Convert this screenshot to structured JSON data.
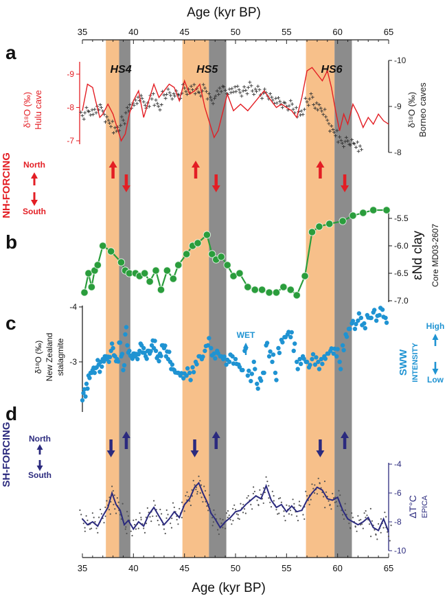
{
  "figure": {
    "x_axis_label_top": "Age (kyr BP)",
    "x_axis_label_bottom": "Age (kyr BP)",
    "x_ticks": [
      35,
      40,
      45,
      50,
      55,
      60,
      65
    ],
    "x_range": [
      35,
      65
    ]
  },
  "events": [
    {
      "label": "HS4",
      "orange": [
        37.3,
        38.6
      ],
      "gray": [
        38.6,
        39.7
      ]
    },
    {
      "label": "HS5",
      "orange": [
        44.8,
        47.4
      ],
      "gray": [
        47.4,
        49.1
      ]
    },
    {
      "label": "HS6",
      "orange": [
        56.9,
        59.7
      ],
      "gray": [
        59.7,
        61.4
      ]
    }
  ],
  "panels": {
    "a": {
      "letter": "a",
      "left_label_1": "δ¹⁸O (‰)",
      "left_label_2": "Hulu cave",
      "right_label_1": "δ¹⁸O (‰)",
      "right_label_2": "Borneo caves",
      "left_ticks": [
        "-9",
        "-8",
        "-7"
      ],
      "right_ticks": [
        "-10",
        "-9",
        "-8"
      ],
      "forcing_title": "NH-FORCING",
      "north": "North",
      "south": "South",
      "arrows": [
        {
          "age": 38.0,
          "dir": "up"
        },
        {
          "age": 39.3,
          "dir": "down"
        },
        {
          "age": 46.1,
          "dir": "up"
        },
        {
          "age": 48.1,
          "dir": "down"
        },
        {
          "age": 58.3,
          "dir": "up"
        },
        {
          "age": 60.7,
          "dir": "down"
        }
      ]
    },
    "b": {
      "letter": "b",
      "right_label_1": "εNd clay",
      "right_label_2": "Core MD03-2607",
      "right_ticks": [
        "-5.5",
        "-6.0",
        "-6.5",
        "-7.0"
      ]
    },
    "c": {
      "letter": "c",
      "left_label_1": "δ¹⁸O (‰)",
      "left_label_2": "New Zealand",
      "left_label_3": "stalagmite",
      "left_ticks": [
        "-4",
        "-3"
      ],
      "wet": "WET",
      "sww": "SWW",
      "intensity": "INTENSITY",
      "high": "High",
      "low": "Low"
    },
    "d": {
      "letter": "d",
      "forcing_title": "SH-FORCING",
      "north": "North",
      "south": "South",
      "right_label_1": "ΔT°C",
      "right_label_2": "EPICA",
      "right_ticks": [
        "-4",
        "-6",
        "-8",
        "-10"
      ],
      "arrows": [
        {
          "age": 37.8,
          "dir": "down"
        },
        {
          "age": 39.3,
          "dir": "up"
        },
        {
          "age": 46.0,
          "dir": "down"
        },
        {
          "age": 48.1,
          "dir": "up"
        },
        {
          "age": 58.3,
          "dir": "down"
        },
        {
          "age": 60.7,
          "dir": "up"
        }
      ]
    }
  },
  "chart_data": [
    {
      "type": "line",
      "name": "Hulu cave δ18O",
      "axis": "left",
      "ylim": [
        -6.5,
        -9.6
      ],
      "x": [
        35,
        35.5,
        36,
        36.3,
        36.7,
        37,
        37.5,
        38,
        38.4,
        38.8,
        39.2,
        39.6,
        40,
        40.5,
        41,
        41.5,
        42,
        42.5,
        43,
        43.5,
        44,
        44.5,
        45,
        45.5,
        46,
        46.5,
        47,
        47.5,
        47.9,
        48.3,
        48.7,
        49.2,
        49.8,
        50.5,
        51.2,
        52,
        52.8,
        53.5,
        54,
        54.5,
        55,
        55.5,
        56,
        56.5,
        57,
        57.5,
        58,
        58.5,
        59,
        59.4,
        59.8,
        60.2,
        60.6,
        61,
        61.5,
        62,
        62.5,
        63,
        63.5,
        64,
        64.5,
        65
      ],
      "y": [
        -7.9,
        -8.7,
        -8.6,
        -8.2,
        -7.7,
        -7.8,
        -8.1,
        -7.8,
        -7.4,
        -7.0,
        -7.2,
        -7.8,
        -8.2,
        -8.5,
        -7.7,
        -8.2,
        -8.7,
        -8.3,
        -8.5,
        -8.7,
        -8.6,
        -8.2,
        -8.8,
        -8.4,
        -8.5,
        -8.7,
        -8.0,
        -7.5,
        -7.1,
        -7.3,
        -7.8,
        -8.4,
        -7.9,
        -8.1,
        -7.9,
        -8.2,
        -8.5,
        -8.2,
        -8.0,
        -8.1,
        -8.0,
        -7.9,
        -7.7,
        -8.3,
        -9.1,
        -9.2,
        -9.0,
        -8.8,
        -9.1,
        -8.6,
        -7.9,
        -7.3,
        -7.8,
        -7.5,
        -8.1,
        -7.8,
        -7.4,
        -7.7,
        -7.5,
        -7.8,
        -7.6,
        -7.5
      ]
    },
    {
      "type": "scatter",
      "name": "Borneo caves δ18O",
      "axis": "right",
      "ylim": [
        -7.95,
        -10.1
      ],
      "x": [
        35,
        35.4,
        35.8,
        36.2,
        36.6,
        37,
        37.4,
        37.8,
        38.2,
        38.6,
        39,
        39.4,
        39.8,
        40.2,
        40.6,
        41,
        41.4,
        41.8,
        42.2,
        42.6,
        43,
        43.4,
        43.8,
        44.2,
        44.6,
        45,
        45.4,
        45.8,
        46.2,
        46.6,
        47,
        47.4,
        47.8,
        48.2,
        48.6,
        49,
        49.4,
        49.8,
        50.2,
        50.6,
        51,
        51.4,
        51.8,
        52.2,
        52.6,
        53,
        53.4,
        53.8,
        54.2,
        54.6,
        55,
        55.4,
        55.8,
        56.2,
        56.6,
        57,
        57.4,
        57.8,
        58.2,
        58.6,
        59,
        59.4,
        59.8,
        60.2,
        60.6,
        61,
        61.4,
        61.8,
        62.2
      ],
      "y": [
        -8.8,
        -8.9,
        -8.85,
        -8.9,
        -9.0,
        -8.9,
        -8.7,
        -8.6,
        -8.5,
        -8.55,
        -8.7,
        -8.9,
        -9.0,
        -9.1,
        -9.2,
        -9.1,
        -9.0,
        -9.2,
        -9.1,
        -9.0,
        -9.25,
        -9.3,
        -9.2,
        -9.3,
        -9.25,
        -9.4,
        -9.3,
        -9.4,
        -9.35,
        -9.3,
        -9.4,
        -9.2,
        -9.1,
        -9.3,
        -9.4,
        -9.35,
        -9.3,
        -9.35,
        -9.4,
        -9.3,
        -9.35,
        -9.45,
        -9.3,
        -9.4,
        -9.25,
        -9.3,
        -9.2,
        -9.1,
        -9.15,
        -9.05,
        -9.0,
        -9.05,
        -8.9,
        -8.85,
        -8.9,
        -9.1,
        -9.2,
        -9.0,
        -9.0,
        -8.9,
        -8.7,
        -8.5,
        -8.4,
        -8.3,
        -8.2,
        -8.25,
        -8.2,
        -8.15,
        -8.1
      ]
    },
    {
      "type": "line",
      "name": "εNd clay MD03-2607",
      "axis": "right",
      "ylim": [
        -7.0,
        -5.3
      ],
      "x": [
        35.2,
        35.6,
        35.9,
        36.2,
        36.5,
        37.0,
        37.8,
        38.8,
        39.2,
        39.6,
        40.2,
        40.6,
        41.1,
        41.6,
        42.2,
        42.7,
        43.3,
        43.9,
        44.4,
        45.2,
        45.8,
        46.3,
        47.2,
        47.7,
        48.1,
        48.6,
        49.2,
        49.8,
        50.4,
        51.2,
        51.9,
        52.6,
        53.3,
        54.0,
        54.7,
        55.4,
        56.0,
        56.8,
        57.5,
        58.2,
        59.2,
        60.5,
        61.5,
        62.5,
        63.5,
        64.8
      ],
      "y": [
        -6.85,
        -6.5,
        -6.75,
        -6.45,
        -6.35,
        -6.0,
        -6.1,
        -6.3,
        -6.45,
        -6.5,
        -6.5,
        -6.55,
        -6.5,
        -6.65,
        -6.45,
        -6.8,
        -6.45,
        -6.6,
        -6.35,
        -6.15,
        -6.0,
        -5.95,
        -5.8,
        -6.15,
        -6.25,
        -6.2,
        -6.35,
        -6.55,
        -6.5,
        -6.75,
        -6.8,
        -6.8,
        -6.85,
        -6.85,
        -6.75,
        -6.8,
        -6.9,
        -6.55,
        -5.75,
        -5.65,
        -5.6,
        -5.55,
        -5.45,
        -5.4,
        -5.35,
        -5.35
      ]
    },
    {
      "type": "scatter",
      "name": "New Zealand stalagmite δ18O",
      "axis": "left",
      "ylim": [
        -2.2,
        -4.0
      ],
      "x": [
        35.0,
        35.2,
        35.4,
        35.6,
        35.8,
        36.0,
        36.2,
        36.4,
        36.6,
        36.8,
        37.0,
        37.2,
        37.4,
        37.6,
        37.8,
        38.0,
        38.2,
        38.4,
        38.6,
        38.8,
        39.0,
        39.2,
        39.4,
        39.6,
        39.8,
        40.0,
        40.2,
        40.4,
        40.6,
        40.8,
        41.0,
        41.2,
        41.4,
        41.6,
        41.8,
        42.0,
        42.2,
        42.4,
        42.6,
        42.8,
        43.0,
        43.2,
        43.4,
        43.6,
        43.8,
        44.0,
        44.3,
        44.6,
        44.9,
        45.2,
        45.5,
        45.8,
        46.1,
        46.4,
        46.7,
        47.0,
        47.3,
        47.6,
        47.9,
        48.2,
        48.5,
        48.8,
        49.1,
        49.4,
        49.7,
        50.0,
        50.3,
        50.6,
        50.9,
        51.2,
        51.5,
        51.8,
        52.1,
        52.4,
        52.7,
        53.0,
        53.3,
        53.6,
        53.9,
        54.2,
        54.5,
        54.8,
        55.1,
        55.4,
        55.7,
        56.0,
        56.3,
        56.6,
        56.9,
        57.2,
        57.5,
        57.8,
        58.1,
        58.4,
        58.7,
        59.0,
        59.3,
        59.6,
        59.9,
        60.2,
        60.5,
        60.8,
        61.1,
        61.4,
        61.7,
        62.0,
        62.3,
        62.6,
        62.9,
        63.2,
        63.5,
        63.8,
        64.1,
        64.4,
        64.7
      ],
      "y": [
        -2.3,
        -2.5,
        -2.6,
        -2.75,
        -2.8,
        -2.85,
        -2.8,
        -2.9,
        -2.95,
        -3.0,
        -3.05,
        -3.1,
        -3.05,
        -3.0,
        -3.2,
        -3.25,
        -3.1,
        -3.05,
        -3.35,
        -3.1,
        -2.85,
        -3.5,
        -3.3,
        -3.2,
        -3.1,
        -3.15,
        -3.1,
        -3.05,
        -3.2,
        -3.3,
        -3.25,
        -3.1,
        -3.2,
        -3.15,
        -3.3,
        -3.25,
        -3.2,
        -3.1,
        -3.15,
        -3.3,
        -3.25,
        -3.1,
        -3.05,
        -3.0,
        -2.95,
        -2.85,
        -2.8,
        -2.75,
        -2.7,
        -2.75,
        -2.8,
        -2.9,
        -3.0,
        -3.1,
        -3.05,
        -3.2,
        -3.3,
        -3.25,
        -3.15,
        -3.2,
        -3.1,
        -3.05,
        -2.95,
        -3.0,
        -3.1,
        -3.05,
        -2.95,
        -2.85,
        -3.2,
        -2.75,
        -2.65,
        -3.0,
        -2.6,
        -2.7,
        -2.8,
        -3.3,
        -3.1,
        -3.0,
        -2.8,
        -3.25,
        -3.4,
        -3.45,
        -3.5,
        -3.45,
        -3.2,
        -3.0,
        -3.05,
        -3.1,
        -3.0,
        -2.9,
        -3.05,
        -2.95,
        -3.0,
        -3.05,
        -3.1,
        -3.15,
        -3.2,
        -3.15,
        -3.1,
        -3.0,
        -3.3,
        -3.5,
        -3.6,
        -3.7,
        -3.6,
        -3.75,
        -3.8,
        -3.7,
        -3.85,
        -3.8,
        -3.9,
        -3.75,
        -3.85,
        -3.95,
        -3.8
      ]
    },
    {
      "type": "line",
      "name": "EPICA ΔT°C",
      "axis": "right",
      "ylim": [
        -10,
        -4
      ],
      "x": [
        35,
        35.5,
        36,
        36.5,
        37,
        37.5,
        37.9,
        38.3,
        38.7,
        39.1,
        39.5,
        40,
        40.5,
        41,
        41.5,
        42,
        42.5,
        43,
        43.5,
        44,
        44.5,
        45,
        45.5,
        46,
        46.4,
        46.8,
        47.2,
        47.6,
        48,
        48.5,
        49,
        49.5,
        50,
        50.5,
        51,
        51.5,
        52,
        52.5,
        53,
        53.5,
        54,
        54.5,
        55,
        55.5,
        56,
        56.5,
        57,
        57.5,
        58,
        58.5,
        59,
        59.5,
        60,
        60.5,
        61,
        61.5,
        62,
        62.5,
        63,
        63.5,
        64,
        64.5,
        65
      ],
      "y": [
        -7.8,
        -8.2,
        -8.0,
        -8.3,
        -7.6,
        -7.0,
        -6.0,
        -6.8,
        -7.2,
        -8.2,
        -7.9,
        -8.5,
        -8.0,
        -8.3,
        -7.5,
        -7.0,
        -7.6,
        -8.2,
        -7.8,
        -7.3,
        -7.7,
        -6.8,
        -6.4,
        -5.6,
        -5.3,
        -6.0,
        -6.6,
        -7.4,
        -7.8,
        -8.4,
        -8.0,
        -7.7,
        -7.3,
        -7.2,
        -6.8,
        -6.5,
        -6.2,
        -6.4,
        -5.5,
        -6.5,
        -7.0,
        -6.8,
        -7.3,
        -6.9,
        -7.3,
        -7.2,
        -6.5,
        -6.0,
        -5.6,
        -5.8,
        -6.4,
        -6.5,
        -6.3,
        -7.2,
        -7.8,
        -8.0,
        -8.2,
        -8.0,
        -7.7,
        -8.4,
        -8.6,
        -7.8,
        -8.7
      ]
    }
  ],
  "colors": {
    "red": "#e31e24",
    "green": "#2a9d3c",
    "blue": "#1f93d2",
    "navy": "#2b2a7e",
    "orange_band": "#f7c08a",
    "gray_band": "#8c8c8c"
  }
}
